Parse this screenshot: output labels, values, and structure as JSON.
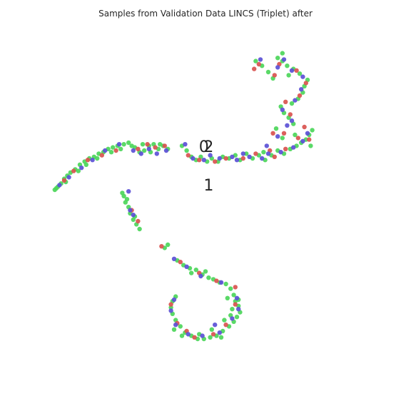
{
  "chart_data": {
    "type": "scatter",
    "title": "Samples from Validation Data LINCS (Triplet) after",
    "xlabel": "",
    "ylabel": "",
    "axes_visible": false,
    "grid": false,
    "xlim": [
      -10,
      10
    ],
    "ylim": [
      -10,
      10
    ],
    "colors": {
      "c0": "#d9534f",
      "c1": "#5b50d6",
      "c2": "#4cd65a"
    },
    "annotations": [
      {
        "text": "0",
        "x": -0.1,
        "y": 3.4
      },
      {
        "text": "2",
        "x": 0.2,
        "y": 3.4
      },
      {
        "text": "1",
        "x": 0.2,
        "y": 0.95
      }
    ],
    "series": [
      {
        "color": "c2",
        "points": [
          [
            -9.6,
            1.0
          ],
          [
            -9.4,
            1.2
          ],
          [
            -9.2,
            1.4
          ],
          [
            -9.0,
            1.7
          ],
          [
            -8.8,
            1.9
          ],
          [
            -8.6,
            2.1
          ],
          [
            -8.3,
            2.3
          ],
          [
            -8.0,
            2.6
          ],
          [
            -7.7,
            2.8
          ],
          [
            -7.4,
            3.0
          ],
          [
            -7.1,
            3.1
          ],
          [
            -6.8,
            3.3
          ],
          [
            -6.5,
            3.4
          ],
          [
            -6.2,
            3.6
          ],
          [
            -5.9,
            3.7
          ],
          [
            -5.6,
            3.8
          ],
          [
            -5.2,
            3.9
          ],
          [
            -4.9,
            4.0
          ],
          [
            -4.5,
            3.7
          ],
          [
            -4.2,
            3.4
          ],
          [
            -3.9,
            3.5
          ],
          [
            -3.6,
            3.8
          ],
          [
            -3.3,
            3.9
          ],
          [
            -3.0,
            3.6
          ],
          [
            -2.7,
            3.8
          ],
          [
            -2.4,
            3.6
          ],
          [
            -9.5,
            1.1
          ],
          [
            -8.9,
            1.5
          ],
          [
            -8.1,
            2.2
          ],
          [
            -7.6,
            2.6
          ],
          [
            -6.9,
            3.0
          ],
          [
            -6.0,
            3.4
          ],
          [
            -5.4,
            3.6
          ],
          [
            -4.7,
            3.8
          ],
          [
            -4.0,
            3.9
          ],
          [
            -3.5,
            3.4
          ],
          [
            -2.9,
            3.9
          ],
          [
            -5.3,
            0.8
          ],
          [
            -5.2,
            0.6
          ],
          [
            -5.0,
            0.4
          ],
          [
            -5.1,
            0.2
          ],
          [
            -4.9,
            -0.1
          ],
          [
            -4.8,
            -0.5
          ],
          [
            -4.6,
            -0.9
          ],
          [
            -4.4,
            -1.2
          ],
          [
            -4.2,
            -1.5
          ],
          [
            -4.5,
            -0.7
          ],
          [
            -1.5,
            3.8
          ],
          [
            -1.2,
            3.5
          ],
          [
            -0.9,
            3.1
          ],
          [
            -0.6,
            2.9
          ],
          [
            -0.3,
            3.1
          ],
          [
            0.1,
            2.8
          ],
          [
            0.4,
            3.0
          ],
          [
            0.8,
            2.8
          ],
          [
            1.1,
            3.1
          ],
          [
            1.5,
            3.0
          ],
          [
            1.9,
            3.2
          ],
          [
            2.2,
            2.9
          ],
          [
            2.6,
            3.3
          ],
          [
            3.0,
            3.0
          ],
          [
            3.4,
            3.2
          ],
          [
            3.8,
            2.9
          ],
          [
            4.2,
            3.2
          ],
          [
            4.6,
            3.5
          ],
          [
            5.0,
            3.3
          ],
          [
            5.4,
            3.6
          ],
          [
            5.8,
            3.8
          ],
          [
            6.1,
            4.0
          ],
          [
            6.4,
            4.2
          ],
          [
            6.6,
            4.5
          ],
          [
            6.8,
            4.8
          ],
          [
            5.6,
            5.2
          ],
          [
            5.3,
            5.6
          ],
          [
            5.0,
            5.9
          ],
          [
            4.8,
            6.3
          ],
          [
            5.5,
            6.5
          ],
          [
            5.9,
            6.8
          ],
          [
            6.2,
            7.2
          ],
          [
            6.3,
            7.6
          ],
          [
            6.5,
            8.0
          ],
          [
            6.0,
            8.4
          ],
          [
            5.6,
            8.7
          ],
          [
            5.2,
            8.9
          ],
          [
            4.9,
            9.2
          ],
          [
            4.6,
            9.4
          ],
          [
            4.9,
            9.7
          ],
          [
            5.3,
            8.3
          ],
          [
            4.3,
            8.1
          ],
          [
            4.0,
            8.5
          ],
          [
            3.6,
            8.9
          ],
          [
            3.2,
            9.2
          ],
          [
            5.7,
            4.5
          ],
          [
            4.5,
            4.9
          ],
          [
            4.9,
            4.3
          ],
          [
            3.7,
            3.4
          ],
          [
            6.7,
            3.8
          ],
          [
            -2.6,
            -2.7
          ],
          [
            -2.4,
            -2.5
          ],
          [
            -1.8,
            -3.5
          ],
          [
            -1.4,
            -3.8
          ],
          [
            -1.0,
            -4.0
          ],
          [
            -0.6,
            -4.1
          ],
          [
            -0.2,
            -4.4
          ],
          [
            0.2,
            -4.6
          ],
          [
            0.5,
            -4.7
          ],
          [
            0.9,
            -4.9
          ],
          [
            1.3,
            -5.0
          ],
          [
            1.6,
            -5.3
          ],
          [
            1.8,
            -5.7
          ],
          [
            1.9,
            -6.1
          ],
          [
            2.1,
            -6.4
          ],
          [
            2.2,
            -6.8
          ],
          [
            2.0,
            -7.1
          ],
          [
            1.8,
            -7.4
          ],
          [
            1.5,
            -7.7
          ],
          [
            1.1,
            -8.0
          ],
          [
            0.7,
            -8.3
          ],
          [
            0.3,
            -8.4
          ],
          [
            -0.1,
            -8.5
          ],
          [
            -0.5,
            -8.5
          ],
          [
            -0.9,
            -8.3
          ],
          [
            -1.3,
            -8.1
          ],
          [
            -1.6,
            -7.7
          ],
          [
            -1.9,
            -7.3
          ],
          [
            -2.1,
            -6.9
          ],
          [
            -2.2,
            -6.5
          ],
          [
            -2.1,
            -6.1
          ],
          [
            -1.9,
            -5.8
          ],
          [
            1.7,
            -6.6
          ],
          [
            1.2,
            -7.3
          ],
          [
            1.0,
            -8.4
          ],
          [
            0.4,
            -7.9
          ],
          [
            -0.4,
            -8.2
          ],
          [
            -1.5,
            -8.3
          ],
          [
            -2.0,
            -7.9
          ],
          [
            1.4,
            -5.9
          ],
          [
            2.1,
            -6.0
          ],
          [
            0.0,
            -4.2
          ],
          [
            -0.9,
            -4.3
          ],
          [
            1.6,
            -7.0
          ]
        ]
      },
      {
        "color": "c0",
        "points": [
          [
            -9.0,
            1.6
          ],
          [
            -8.4,
            2.2
          ],
          [
            -7.5,
            2.9
          ],
          [
            -6.6,
            3.2
          ],
          [
            -5.7,
            3.5
          ],
          [
            -4.3,
            3.6
          ],
          [
            -3.7,
            3.9
          ],
          [
            -3.2,
            3.7
          ],
          [
            -2.6,
            3.8
          ],
          [
            -4.7,
            -0.3
          ],
          [
            -4.3,
            -1.0
          ],
          [
            -1.1,
            3.2
          ],
          [
            -0.4,
            2.9
          ],
          [
            0.6,
            2.8
          ],
          [
            1.3,
            3.0
          ],
          [
            2.4,
            3.0
          ],
          [
            3.2,
            3.3
          ],
          [
            4.4,
            3.1
          ],
          [
            5.1,
            3.6
          ],
          [
            5.9,
            4.3
          ],
          [
            6.3,
            5.0
          ],
          [
            5.4,
            5.8
          ],
          [
            5.1,
            6.6
          ],
          [
            6.0,
            7.0
          ],
          [
            6.4,
            7.8
          ],
          [
            5.8,
            8.6
          ],
          [
            4.7,
            9.0
          ],
          [
            4.4,
            8.3
          ],
          [
            3.4,
            9.0
          ],
          [
            3.1,
            8.7
          ],
          [
            6.6,
            4.2
          ],
          [
            5.0,
            4.6
          ],
          [
            4.1,
            3.5
          ],
          [
            4.3,
            4.6
          ],
          [
            -2.8,
            -2.6
          ],
          [
            -1.6,
            -3.6
          ],
          [
            -0.4,
            -4.3
          ],
          [
            0.7,
            -4.8
          ],
          [
            1.9,
            -6.3
          ],
          [
            1.3,
            -7.6
          ],
          [
            0.5,
            -8.2
          ],
          [
            -0.7,
            -8.4
          ],
          [
            -1.8,
            -7.5
          ],
          [
            -2.2,
            -6.3
          ],
          [
            1.9,
            -5.2
          ],
          [
            -1.2,
            -8.0
          ]
        ]
      },
      {
        "color": "c1",
        "points": [
          [
            -9.3,
            1.3
          ],
          [
            -8.7,
            1.8
          ],
          [
            -7.9,
            2.4
          ],
          [
            -7.2,
            2.9
          ],
          [
            -6.4,
            3.5
          ],
          [
            -5.5,
            3.9
          ],
          [
            -4.6,
            3.5
          ],
          [
            -4.1,
            3.3
          ],
          [
            -3.6,
            3.6
          ],
          [
            -3.1,
            3.3
          ],
          [
            -2.5,
            3.5
          ],
          [
            -4.9,
            0.9
          ],
          [
            -4.8,
            -0.3
          ],
          [
            -4.6,
            -0.6
          ],
          [
            -1.3,
            3.9
          ],
          [
            -0.8,
            3.0
          ],
          [
            -0.1,
            2.9
          ],
          [
            0.3,
            3.2
          ],
          [
            0.9,
            3.0
          ],
          [
            1.7,
            3.1
          ],
          [
            2.0,
            2.9
          ],
          [
            2.8,
            3.1
          ],
          [
            3.6,
            3.0
          ],
          [
            4.0,
            3.3
          ],
          [
            4.8,
            3.4
          ],
          [
            5.6,
            3.7
          ],
          [
            6.2,
            4.1
          ],
          [
            6.5,
            4.6
          ],
          [
            5.5,
            5.4
          ],
          [
            4.9,
            6.1
          ],
          [
            5.7,
            6.7
          ],
          [
            6.1,
            7.4
          ],
          [
            6.2,
            8.2
          ],
          [
            5.5,
            8.6
          ],
          [
            5.0,
            9.3
          ],
          [
            4.6,
            8.8
          ],
          [
            3.5,
            9.3
          ],
          [
            5.2,
            5.1
          ],
          [
            4.6,
            4.4
          ],
          [
            3.9,
            3.8
          ],
          [
            2.4,
            3.3
          ],
          [
            -2.0,
            -3.4
          ],
          [
            -1.2,
            -3.9
          ],
          [
            -0.3,
            -4.5
          ],
          [
            1.0,
            -4.9
          ],
          [
            2.0,
            -5.9
          ],
          [
            2.1,
            -6.6
          ],
          [
            1.7,
            -7.2
          ],
          [
            0.9,
            -8.1
          ],
          [
            -0.2,
            -8.3
          ],
          [
            -1.1,
            -8.2
          ],
          [
            -1.9,
            -7.6
          ],
          [
            -2.2,
            -6.7
          ],
          [
            -2.0,
            -6.0
          ],
          [
            0.6,
            -7.6
          ]
        ]
      }
    ]
  }
}
